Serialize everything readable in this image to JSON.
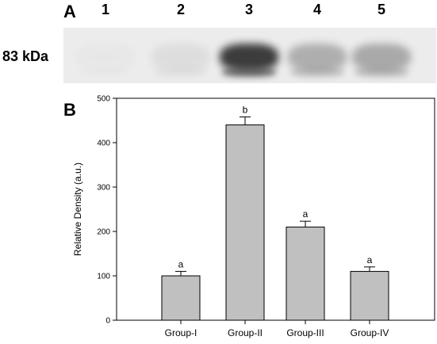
{
  "panel_a": {
    "letter": "A",
    "lanes": [
      "1",
      "2",
      "3",
      "4",
      "5"
    ],
    "molecular_weight": "83 kDa",
    "band_intensity": [
      0.02,
      0.08,
      1.0,
      0.35,
      0.38
    ],
    "colors": {
      "background": "#ececec",
      "band": "#2a2a2a"
    }
  },
  "panel_b": {
    "letter": "B"
  },
  "chart_data": {
    "type": "bar",
    "categories": [
      "Group-I",
      "Group-II",
      "Group-III",
      "Group-IV"
    ],
    "values": [
      100,
      440,
      210,
      110
    ],
    "errors": [
      10,
      18,
      13,
      10
    ],
    "significance": [
      "a",
      "b",
      "a",
      "a"
    ],
    "title": "",
    "xlabel": "",
    "ylabel": "Relative Density (a.u.)",
    "ylim": [
      0,
      500
    ],
    "yticks": [
      0,
      100,
      200,
      300,
      400,
      500
    ],
    "grid": false,
    "bar_color": "#c0c0c0",
    "bar_edge_color": "#000000"
  }
}
